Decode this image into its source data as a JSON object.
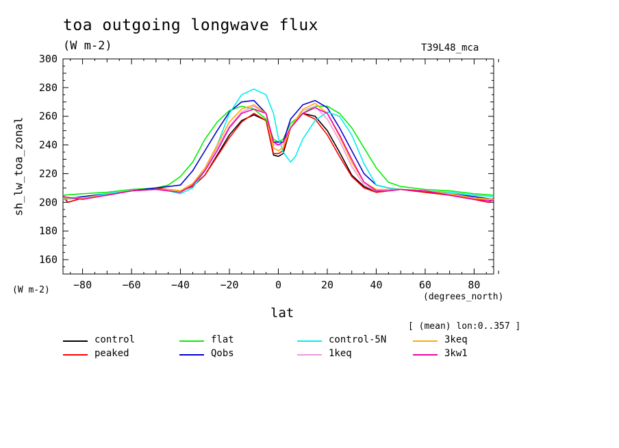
{
  "chart_data": {
    "type": "line",
    "title": "toa outgoing longwave flux",
    "units": "(W m-2)",
    "model_label": "T39L48_mca",
    "ylabel": "sh_lw_toa_zonal",
    "yunits": "(W m-2)",
    "xlabel": "lat",
    "xunits": "(degrees_north)",
    "subset_label": "[ (mean) lon:0..357 ]",
    "xlim": [
      -88,
      88
    ],
    "ylim": [
      150,
      300
    ],
    "xticks": [
      -80,
      -60,
      -40,
      -20,
      0,
      20,
      40,
      60,
      80
    ],
    "yticks": [
      160,
      180,
      200,
      220,
      240,
      260,
      280,
      300
    ],
    "series": [
      {
        "name": "control",
        "color": "#000000",
        "x": [
          -88,
          -86,
          -80,
          -70,
          -60,
          -50,
          -45,
          -40,
          -35,
          -30,
          -25,
          -20,
          -15,
          -10,
          -5,
          -2,
          0,
          2,
          5,
          10,
          15,
          20,
          25,
          30,
          35,
          40,
          45,
          50,
          60,
          70,
          80,
          86,
          88
        ],
        "y": [
          204,
          200,
          203,
          205,
          208,
          210,
          209,
          208,
          211,
          219,
          233,
          247,
          257,
          261,
          257,
          233,
          232,
          234,
          252,
          262,
          260,
          250,
          235,
          219,
          211,
          207,
          208,
          209,
          207,
          205,
          202,
          200,
          203
        ]
      },
      {
        "name": "peaked",
        "color": "#ff0000",
        "x": [
          -88,
          -86,
          -80,
          -70,
          -60,
          -50,
          -45,
          -40,
          -35,
          -30,
          -25,
          -20,
          -15,
          -10,
          -5,
          -2,
          0,
          2,
          5,
          10,
          15,
          20,
          25,
          30,
          35,
          40,
          45,
          50,
          60,
          70,
          80,
          86,
          88
        ],
        "y": [
          205,
          200,
          203,
          205,
          208,
          210,
          209,
          208,
          211,
          219,
          232,
          245,
          256,
          262,
          257,
          234,
          234,
          236,
          252,
          262,
          258,
          247,
          232,
          218,
          210,
          207,
          208,
          209,
          207,
          205,
          202,
          200,
          203
        ]
      },
      {
        "name": "flat",
        "color": "#00ee00",
        "x": [
          -88,
          -80,
          -70,
          -60,
          -50,
          -45,
          -40,
          -35,
          -30,
          -25,
          -20,
          -15,
          -10,
          -5,
          -2,
          0,
          2,
          5,
          10,
          15,
          20,
          25,
          30,
          35,
          40,
          45,
          50,
          60,
          70,
          80,
          88
        ],
        "y": [
          205,
          206,
          207,
          209,
          210,
          212,
          218,
          228,
          244,
          256,
          264,
          267,
          265,
          258,
          244,
          242,
          244,
          255,
          262,
          267,
          267,
          262,
          252,
          238,
          224,
          214,
          211,
          209,
          208,
          206,
          205
        ]
      },
      {
        "name": "Qobs",
        "color": "#0000cc",
        "x": [
          -88,
          -80,
          -70,
          -60,
          -50,
          -45,
          -40,
          -35,
          -30,
          -25,
          -20,
          -15,
          -10,
          -5,
          -2,
          0,
          2,
          5,
          10,
          15,
          20,
          25,
          30,
          35,
          40,
          45,
          50,
          60,
          70,
          80,
          88
        ],
        "y": [
          202,
          204,
          206,
          208,
          210,
          211,
          212,
          222,
          236,
          250,
          263,
          270,
          271,
          262,
          242,
          242,
          242,
          258,
          268,
          271,
          266,
          252,
          236,
          220,
          212,
          210,
          209,
          208,
          206,
          204,
          202
        ]
      },
      {
        "name": "control-5N",
        "color": "#00eeee",
        "x": [
          -88,
          -80,
          -70,
          -60,
          -50,
          -45,
          -40,
          -35,
          -30,
          -25,
          -20,
          -15,
          -10,
          -5,
          -2,
          0,
          2,
          5,
          7,
          10,
          15,
          20,
          25,
          30,
          35,
          40,
          45,
          50,
          60,
          70,
          80,
          88
        ],
        "y": [
          202,
          203,
          206,
          208,
          209,
          208,
          206,
          210,
          222,
          240,
          262,
          275,
          279,
          275,
          262,
          245,
          235,
          228,
          232,
          244,
          257,
          263,
          260,
          247,
          227,
          212,
          210,
          209,
          208,
          207,
          205,
          204
        ]
      },
      {
        "name": "1keq",
        "color": "#ee99dd",
        "x": [
          -88,
          -80,
          -70,
          -60,
          -50,
          -45,
          -40,
          -35,
          -30,
          -25,
          -20,
          -15,
          -10,
          -5,
          -2,
          0,
          2,
          5,
          10,
          15,
          20,
          25,
          30,
          35,
          40,
          45,
          50,
          60,
          70,
          80,
          88
        ],
        "y": [
          203,
          203,
          205,
          208,
          209,
          209,
          208,
          213,
          223,
          238,
          253,
          263,
          267,
          262,
          240,
          240,
          240,
          252,
          264,
          267,
          258,
          243,
          225,
          212,
          208,
          208,
          209,
          208,
          206,
          203,
          202
        ]
      },
      {
        "name": "3keq",
        "color": "#ffaa00",
        "x": [
          -88,
          -80,
          -70,
          -60,
          -50,
          -45,
          -40,
          -35,
          -30,
          -25,
          -20,
          -15,
          -10,
          -5,
          -2,
          0,
          2,
          5,
          10,
          15,
          20,
          25,
          30,
          35,
          40,
          45,
          50,
          60,
          70,
          80,
          88
        ],
        "y": [
          203,
          203,
          205,
          208,
          209,
          209,
          208,
          213,
          224,
          240,
          256,
          265,
          268,
          262,
          238,
          236,
          238,
          252,
          265,
          269,
          262,
          246,
          228,
          214,
          209,
          209,
          209,
          208,
          206,
          203,
          202
        ]
      },
      {
        "name": "3kw1",
        "color": "#ee00aa",
        "x": [
          -88,
          -80,
          -70,
          -60,
          -50,
          -45,
          -40,
          -35,
          -30,
          -25,
          -20,
          -15,
          -10,
          -5,
          -2,
          0,
          2,
          5,
          10,
          15,
          20,
          25,
          30,
          35,
          40,
          45,
          50,
          60,
          70,
          80,
          88
        ],
        "y": [
          204,
          202,
          205,
          208,
          209,
          208,
          207,
          212,
          222,
          236,
          252,
          262,
          265,
          262,
          242,
          240,
          242,
          252,
          262,
          266,
          262,
          247,
          230,
          214,
          208,
          208,
          209,
          208,
          205,
          202,
          201
        ]
      }
    ]
  }
}
